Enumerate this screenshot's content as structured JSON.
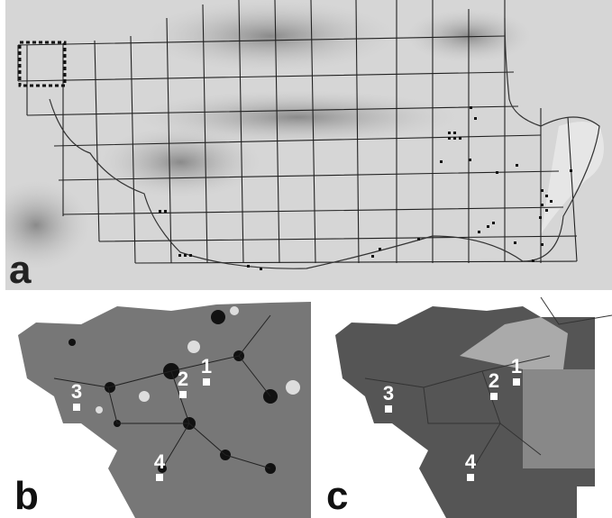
{
  "panels": [
    {
      "label": "a"
    },
    {
      "label": "b",
      "sites": [
        "1",
        "2",
        "3",
        "4"
      ]
    },
    {
      "label": "c",
      "sites": [
        "1",
        "2",
        "3",
        "4"
      ]
    }
  ]
}
